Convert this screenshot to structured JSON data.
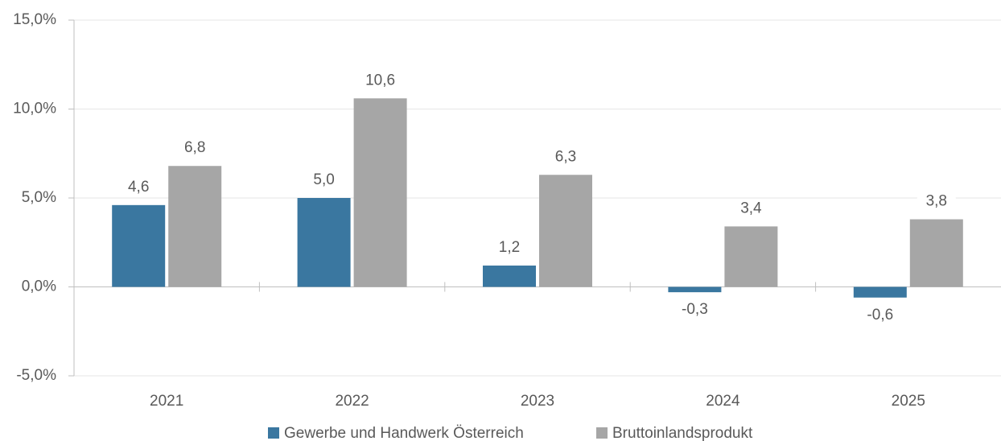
{
  "chart_data": {
    "type": "bar",
    "categories": [
      "2021",
      "2022",
      "2023",
      "2024",
      "2025"
    ],
    "series": [
      {
        "name": "Gewerbe und Handwerk Österreich",
        "color": "#3a77a0",
        "values": [
          4.6,
          5.0,
          1.2,
          -0.3,
          -0.6
        ],
        "value_labels": [
          "4,6",
          "5,0",
          "1,2",
          "-0,3",
          "-0,6"
        ]
      },
      {
        "name": "Bruttoinlandsprodukt",
        "color": "#a6a6a6",
        "values": [
          6.8,
          10.6,
          6.3,
          3.4,
          3.8
        ],
        "value_labels": [
          "6,8",
          "10,6",
          "6,3",
          "3,4",
          "3,8"
        ]
      }
    ],
    "ylim": [
      -5,
      15
    ],
    "yticks": [
      {
        "value": -5,
        "label": "-5,0%"
      },
      {
        "value": 0,
        "label": "0,0%"
      },
      {
        "value": 5,
        "label": "5,0%"
      },
      {
        "value": 10,
        "label": "10,0%"
      },
      {
        "value": 15,
        "label": "15,0%"
      }
    ],
    "grid": true,
    "legend": "bottom"
  }
}
